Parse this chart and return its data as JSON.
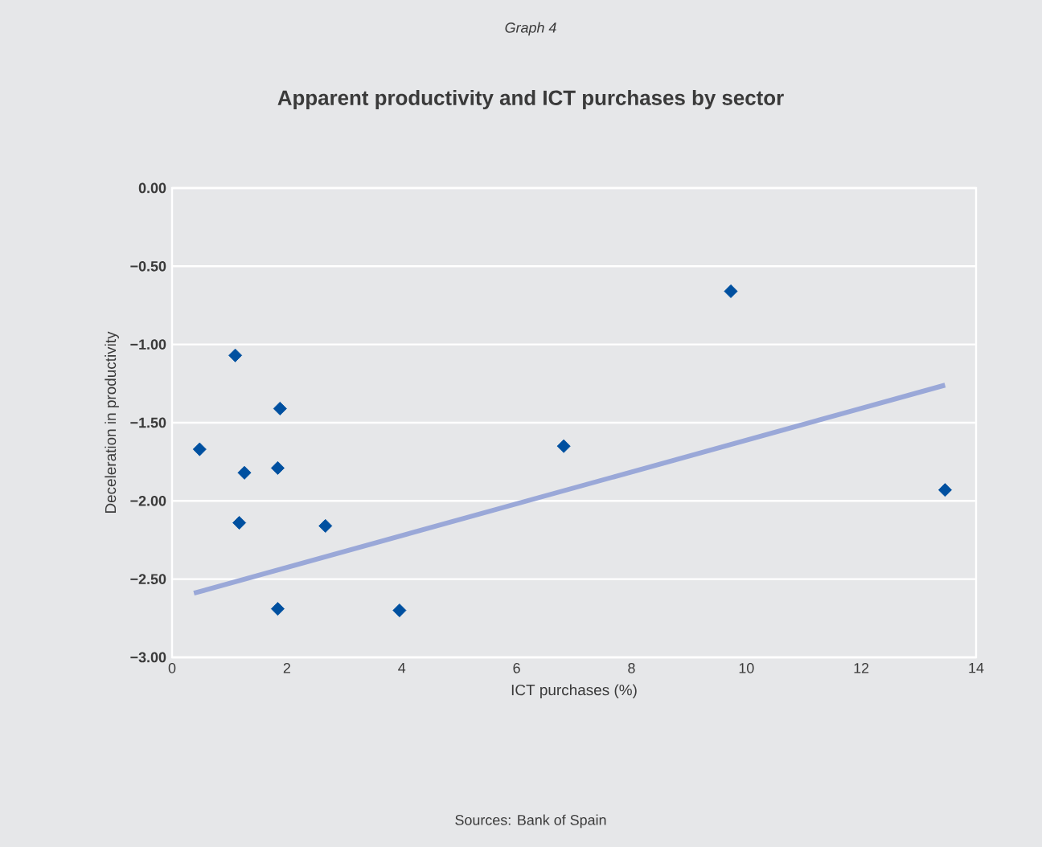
{
  "chart_data": {
    "type": "scatter",
    "subtitle": "Graph 4",
    "title": "Apparent productivity and ICT purchases by sector",
    "xlabel": "ICT purchases (%)",
    "ylabel": "Deceleration in productivity",
    "annotations": [
      "Sources: Bank of Spain"
    ],
    "series": [
      {
        "type": "scatter",
        "color": "#0050a0",
        "marker": "diamond",
        "x": [
          0.48,
          1.1,
          1.88,
          1.26,
          1.84,
          1.17,
          2.67,
          1.84,
          3.96,
          6.82,
          9.73,
          13.46
        ],
        "values": [
          -1.67,
          -1.07,
          -1.41,
          -1.82,
          -1.79,
          -2.14,
          -2.16,
          -2.69,
          -2.7,
          -1.65,
          -0.66,
          -1.93
        ]
      },
      {
        "type": "line",
        "color": "#9aa8d8",
        "marker": "none",
        "line_style": "solid",
        "x": [
          0.38,
          13.46
        ],
        "values": [
          -2.59,
          -1.26
        ]
      }
    ],
    "xlim": [
      0,
      14
    ],
    "xticks": [
      0,
      2,
      4,
      6,
      8,
      10,
      12,
      14
    ],
    "ylim": [
      -3,
      0
    ],
    "yticks": [
      {
        "value": -3,
        "label": "−3.00"
      },
      {
        "value": -2.5,
        "label": "−2.50"
      },
      {
        "value": -2,
        "label": "−2.00"
      },
      {
        "value": -1.5,
        "label": "−1.50"
      },
      {
        "value": -1,
        "label": "−1.00"
      },
      {
        "value": -0.5,
        "label": "−0.50"
      },
      {
        "value": 0,
        "label": "0.00"
      }
    ],
    "grid": "y"
  }
}
